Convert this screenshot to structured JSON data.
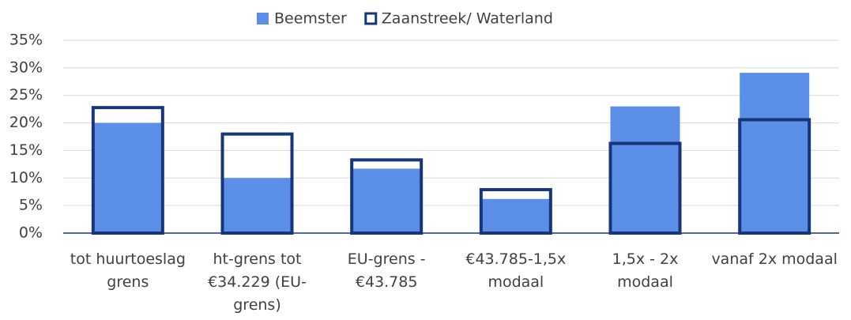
{
  "chart_data": {
    "type": "bar",
    "categories": [
      "tot huurtoeslag grens",
      "ht-grens tot €34.229 (EU-grens)",
      "EU-grens - €43.785",
      "€43.785-1,5x modaal",
      "1,5x - 2x modaal",
      "vanaf 2x modaal"
    ],
    "series": [
      {
        "name": "Beemster",
        "color": "#5b8ee6",
        "style": "filled",
        "values": [
          20,
          10,
          11.7,
          6.2,
          23,
          29.1
        ]
      },
      {
        "name": "Zaanstreek/ Waterland",
        "color": "#17367a",
        "style": "outline",
        "values": [
          23,
          18.2,
          13.5,
          8.1,
          16.5,
          20.8
        ]
      }
    ],
    "ylim": [
      0,
      35
    ],
    "yticks": [
      {
        "value": 0,
        "label": "0%"
      },
      {
        "value": 5,
        "label": "5%"
      },
      {
        "value": 10,
        "label": "10%"
      },
      {
        "value": 15,
        "label": "15%"
      },
      {
        "value": 20,
        "label": "20%"
      },
      {
        "value": 25,
        "label": "25%"
      },
      {
        "value": 30,
        "label": "30%"
      },
      {
        "value": 35,
        "label": "35%"
      }
    ],
    "grid": true,
    "legend": "top"
  }
}
